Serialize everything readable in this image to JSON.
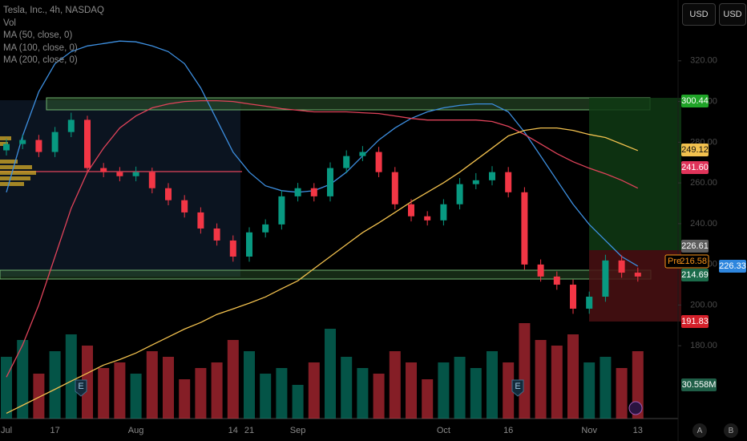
{
  "chart_data": {
    "type": "candlestick",
    "title": "Tesla, Inc., 4h, NASDAQ",
    "volume_title": "Vol",
    "categories": [
      "Jul",
      null,
      null,
      "17",
      null,
      null,
      null,
      null,
      "Aug",
      null,
      null,
      null,
      null,
      null,
      "14",
      "21",
      null,
      null,
      "Sep",
      null,
      null,
      null,
      null,
      null,
      null,
      null,
      null,
      "Oct",
      null,
      null,
      null,
      "16",
      null,
      null,
      null,
      null,
      "Nov",
      null,
      null,
      "13"
    ],
    "open": [
      276.0,
      279.1,
      281.1,
      275.2,
      285.0,
      291.0,
      267.3,
      265.3,
      263.3,
      265.3,
      257.4,
      251.5,
      245.5,
      237.6,
      231.7,
      223.8,
      235.7,
      239.6,
      253.4,
      257.4,
      253.4,
      267.3,
      273.2,
      275.2,
      265.3,
      249.5,
      243.6,
      241.6,
      249.5,
      259.4,
      261.3,
      265.3,
      255.4,
      219.9,
      214.0,
      210.0,
      198.2,
      204.1,
      221.9,
      215.9
    ],
    "high": [
      281.6,
      283.6,
      283.6,
      287.5,
      294.5,
      293.0,
      269.8,
      267.8,
      268.0,
      267.5,
      259.9,
      254.0,
      248.0,
      240.1,
      234.2,
      238.2,
      242.1,
      256.4,
      260.0,
      259.9,
      270.1,
      276.0,
      278.1,
      277.7,
      267.8,
      252.0,
      246.1,
      252.0,
      262.4,
      264.8,
      268.2,
      267.8,
      257.9,
      222.4,
      216.5,
      212.5,
      206.6,
      224.7,
      224.4,
      218.4
    ],
    "low": [
      273.5,
      276.6,
      272.7,
      272.7,
      282.5,
      264.8,
      262.8,
      260.8,
      260.8,
      254.9,
      249.0,
      243.0,
      235.1,
      229.2,
      221.3,
      221.3,
      233.2,
      237.1,
      250.9,
      250.9,
      250.9,
      264.8,
      270.7,
      262.8,
      247.0,
      241.1,
      239.1,
      239.1,
      247.0,
      256.9,
      258.8,
      252.9,
      217.4,
      211.5,
      207.5,
      195.7,
      195.7,
      201.6,
      213.4,
      211.5
    ],
    "close": [
      279.1,
      281.1,
      275.2,
      285.0,
      291.0,
      267.3,
      265.3,
      263.3,
      265.3,
      257.4,
      251.5,
      245.5,
      237.6,
      231.7,
      223.8,
      235.7,
      239.6,
      253.4,
      257.4,
      253.4,
      267.3,
      273.2,
      275.2,
      265.3,
      249.5,
      243.6,
      241.6,
      249.5,
      259.4,
      261.3,
      265.3,
      255.4,
      219.9,
      214.0,
      210.0,
      198.2,
      204.1,
      221.9,
      215.9,
      214.0
    ],
    "volume": [
      55,
      70,
      40,
      60,
      75,
      65,
      45,
      50,
      40,
      60,
      55,
      35,
      45,
      50,
      70,
      60,
      40,
      45,
      30,
      50,
      80,
      55,
      45,
      40,
      60,
      50,
      35,
      50,
      55,
      45,
      60,
      50,
      85,
      70,
      65,
      75,
      50,
      55,
      45,
      60
    ],
    "up_color": "#089981",
    "down_color": "#f23645",
    "series": [
      {
        "name": "MA (50, close, 0)",
        "color": "#3d8fe0",
        "values": [
          255.4,
          283.1,
          304.8,
          318.6,
          324.5,
          327.3,
          328.5,
          329.7,
          329.3,
          327.3,
          324.5,
          318.6,
          306.7,
          290.9,
          275.1,
          265.3,
          258.6,
          256.2,
          255.4,
          256.2,
          259.3,
          265.3,
          273.2,
          281.1,
          287.0,
          291.7,
          294.9,
          296.9,
          298.1,
          298.8,
          298.8,
          294.9,
          285.0,
          273.2,
          261.3,
          249.5,
          239.6,
          231.7,
          223.8,
          219.1
        ]
      },
      {
        "name": "MA (100, close, 0)",
        "color": "#e0435a",
        "values": [
          164.6,
          180.4,
          200.1,
          223.8,
          247.5,
          265.3,
          277.1,
          287.0,
          292.9,
          296.9,
          298.8,
          300.0,
          300.4,
          300.4,
          300.0,
          298.8,
          297.7,
          296.5,
          295.7,
          294.9,
          294.9,
          294.9,
          294.5,
          294.1,
          292.9,
          291.7,
          290.9,
          290.9,
          290.9,
          290.9,
          290.2,
          287.8,
          283.8,
          279.1,
          274.4,
          270.4,
          267.2,
          264.5,
          261.3,
          257.4
        ]
      },
      {
        "name": "MA (200, close, 0)",
        "color": "#f2c14e",
        "values": [
          146.8,
          150.7,
          154.7,
          158.6,
          162.6,
          166.5,
          170.5,
          173.2,
          176.4,
          180.4,
          184.3,
          188.2,
          191.4,
          195.4,
          198.1,
          200.9,
          204.0,
          208.0,
          211.9,
          217.9,
          223.8,
          229.7,
          235.6,
          240.4,
          245.5,
          250.7,
          255.4,
          260.1,
          265.3,
          271.2,
          277.1,
          283.1,
          285.8,
          287.0,
          287.0,
          285.8,
          283.8,
          282.3,
          279.1,
          275.9
        ]
      }
    ],
    "ylim": [
      145,
      342
    ],
    "yticks": [
      {
        "value": 180,
        "label": "180.00"
      },
      {
        "value": 200,
        "label": "200.00"
      },
      {
        "value": 220,
        "label": "220.00"
      },
      {
        "value": 240,
        "label": "240.00"
      },
      {
        "value": 260,
        "label": "260.00"
      },
      {
        "value": 280,
        "label": "280.00"
      },
      {
        "value": 300,
        "label": "300.00"
      },
      {
        "value": 320,
        "label": "320.00"
      }
    ],
    "vlim": [
      0,
      100
    ],
    "price_labels": [
      {
        "text": "300.44",
        "color": "#1fa327"
      },
      {
        "text": "249.12",
        "color": "#f2c14e"
      },
      {
        "text": "241.60",
        "color": "#e0345a"
      },
      {
        "text": "226.61",
        "color": "#5d5d5d"
      },
      {
        "text": "216.58",
        "prefix": "Pre",
        "color": "#f7931a"
      },
      {
        "text": "226.33",
        "color": "#2e86de"
      },
      {
        "text": "214.69",
        "color": "#1b6b4a"
      },
      {
        "text": "191.83",
        "color": "#d4202a"
      },
      {
        "text": "30.558M",
        "color": "#1f5e47"
      }
    ],
    "events": [
      "E",
      "E"
    ],
    "currency_buttons": [
      "USD",
      "USD"
    ],
    "scale_buttons": [
      "A",
      "B"
    ]
  }
}
